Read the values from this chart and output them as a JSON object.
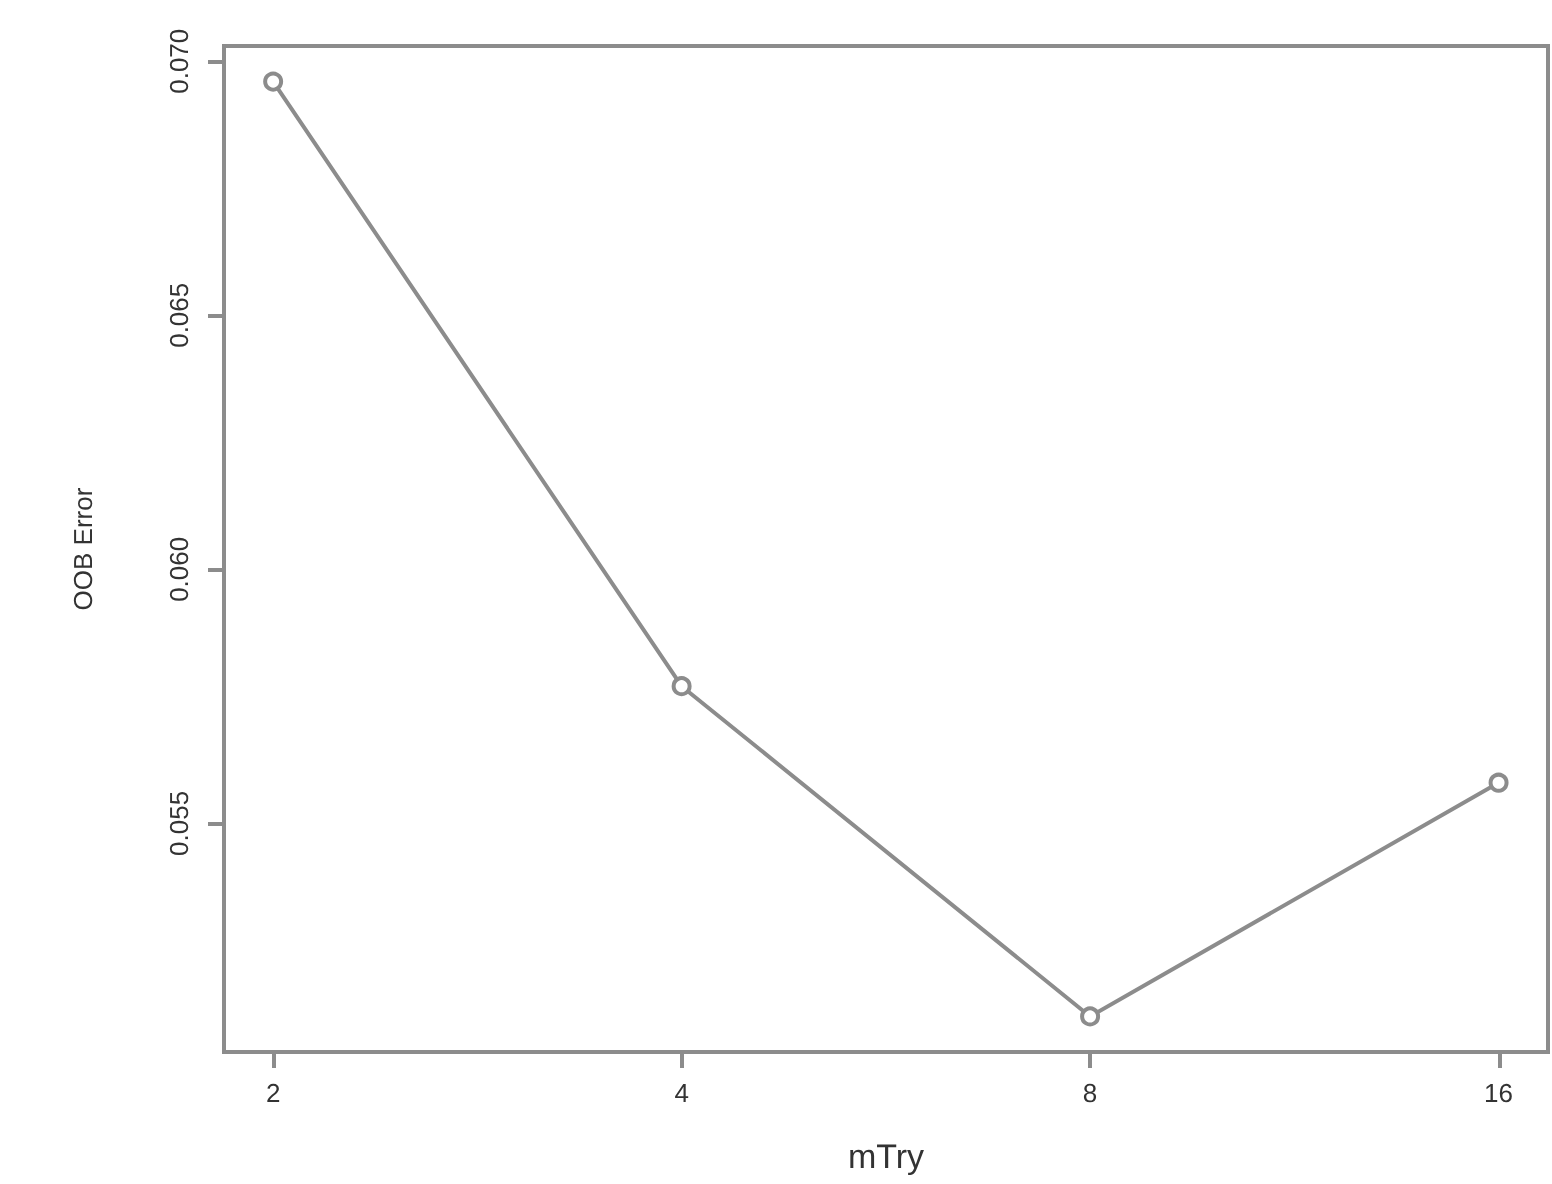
{
  "chart_data": {
    "type": "line",
    "xlabel": "mTry",
    "ylabel": "OOB Error",
    "x": [
      2,
      4,
      8,
      16
    ],
    "series": [
      {
        "color": "#8c8c8c",
        "values": [
          0.0696,
          0.0577,
          0.0512,
          0.0558
        ]
      }
    ],
    "log": "x",
    "xlim": [
      1.84,
      17.4
    ],
    "xticks": [
      2,
      4,
      8,
      16
    ],
    "ylim": [
      0.0505,
      0.0703
    ],
    "yticks": [
      0.055,
      {
        "value": 0.06,
        "label": "0.060"
      },
      0.065,
      {
        "value": 0.07,
        "label": "0.070"
      }
    ],
    "marker": "circle",
    "line_style": "solid",
    "grid": false
  }
}
